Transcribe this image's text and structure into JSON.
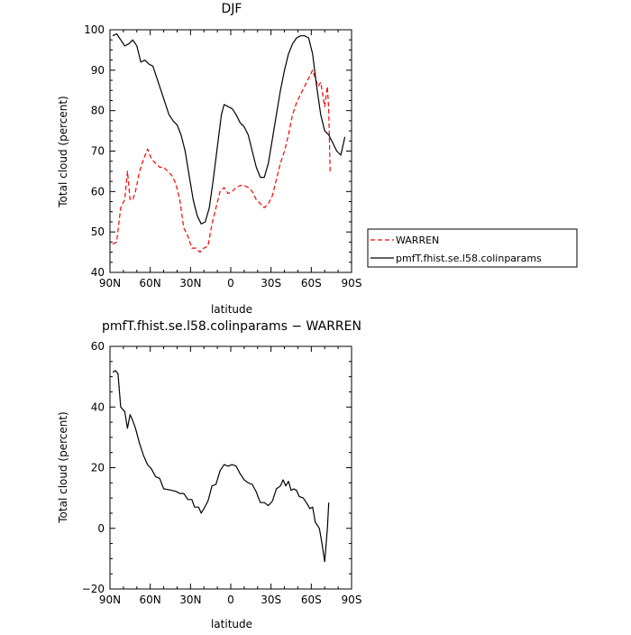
{
  "chart_data": [
    {
      "type": "line",
      "title": "DJF",
      "xlabel": "latitude",
      "ylabel": "Total cloud (percent)",
      "xlim": [
        -90,
        90
      ],
      "ylim": [
        40,
        100
      ],
      "x_ticks": [
        -90,
        -60,
        -30,
        0,
        30,
        60,
        90
      ],
      "x_tick_labels": [
        "90N",
        "60N",
        "30N",
        "0",
        "30S",
        "60S",
        "90S"
      ],
      "y_ticks": [
        40,
        50,
        60,
        70,
        80,
        90,
        100
      ],
      "y_tick_labels": [
        "40",
        "50",
        "60",
        "70",
        "80",
        "90",
        "100"
      ],
      "legend_position": "right",
      "series": [
        {
          "name": "WARREN",
          "color": "#ff0000",
          "dash": "dashed",
          "points": [
            [
              -88,
              47
            ],
            [
              -85,
              47.5
            ],
            [
              -82,
              56
            ],
            [
              -79,
              58
            ],
            [
              -77,
              65
            ],
            [
              -75,
              58
            ],
            [
              -73,
              58
            ],
            [
              -71,
              60
            ],
            [
              -68,
              65
            ],
            [
              -65,
              68
            ],
            [
              -62,
              70.5
            ],
            [
              -59,
              68
            ],
            [
              -56,
              67
            ],
            [
              -53,
              66
            ],
            [
              -50,
              66
            ],
            [
              -47,
              65
            ],
            [
              -44,
              64
            ],
            [
              -41,
              62
            ],
            [
              -38,
              58
            ],
            [
              -35,
              51
            ],
            [
              -32,
              49
            ],
            [
              -29,
              46
            ],
            [
              -26,
              46
            ],
            [
              -23,
              45
            ],
            [
              -20,
              46
            ],
            [
              -17,
              46.5
            ],
            [
              -14,
              52
            ],
            [
              -11,
              56
            ],
            [
              -8,
              60
            ],
            [
              -5,
              61
            ],
            [
              -2,
              59.5
            ],
            [
              1,
              60
            ],
            [
              4,
              61
            ],
            [
              7,
              61.5
            ],
            [
              10,
              61.5
            ],
            [
              13,
              61
            ],
            [
              16,
              60
            ],
            [
              19,
              58
            ],
            [
              22,
              57
            ],
            [
              25,
              56
            ],
            [
              28,
              57
            ],
            [
              31,
              59
            ],
            [
              34,
              63
            ],
            [
              37,
              67
            ],
            [
              40,
              70
            ],
            [
              43,
              74
            ],
            [
              46,
              79
            ],
            [
              49,
              82
            ],
            [
              52,
              84
            ],
            [
              55,
              86
            ],
            [
              58,
              88
            ],
            [
              61,
              90
            ],
            [
              63,
              88
            ],
            [
              65,
              86
            ],
            [
              67,
              87
            ],
            [
              70,
              81
            ],
            [
              72,
              86
            ],
            [
              73,
              80
            ],
            [
              74,
              65
            ]
          ]
        },
        {
          "name": "pmfT.fhist.se.l58.colinparams",
          "color": "#000000",
          "dash": "solid",
          "points": [
            [
              -88,
              98.5
            ],
            [
              -85,
              99
            ],
            [
              -82,
              97.5
            ],
            [
              -79,
              96
            ],
            [
              -76,
              96.5
            ],
            [
              -73,
              97.5
            ],
            [
              -70,
              96
            ],
            [
              -67,
              92
            ],
            [
              -64,
              92.5
            ],
            [
              -61,
              91.5
            ],
            [
              -58,
              91
            ],
            [
              -55,
              88
            ],
            [
              -52,
              85
            ],
            [
              -49,
              82
            ],
            [
              -46,
              79
            ],
            [
              -43,
              77.5
            ],
            [
              -40,
              76.5
            ],
            [
              -37,
              74
            ],
            [
              -34,
              70
            ],
            [
              -31,
              64
            ],
            [
              -28,
              58
            ],
            [
              -25,
              54
            ],
            [
              -22,
              52
            ],
            [
              -19,
              52.5
            ],
            [
              -16,
              56
            ],
            [
              -13,
              63
            ],
            [
              -10,
              71
            ],
            [
              -7,
              79
            ],
            [
              -5,
              81.5
            ],
            [
              -2,
              81
            ],
            [
              1,
              80.5
            ],
            [
              4,
              79
            ],
            [
              7,
              77
            ],
            [
              10,
              76
            ],
            [
              13,
              74
            ],
            [
              16,
              70
            ],
            [
              19,
              66
            ],
            [
              22,
              63.5
            ],
            [
              25,
              63.5
            ],
            [
              28,
              67
            ],
            [
              31,
              73
            ],
            [
              34,
              79
            ],
            [
              37,
              85
            ],
            [
              40,
              90
            ],
            [
              43,
              94
            ],
            [
              46,
              96.5
            ],
            [
              49,
              98
            ],
            [
              52,
              98.5
            ],
            [
              55,
              98.5
            ],
            [
              58,
              98
            ],
            [
              61,
              94
            ],
            [
              64,
              86
            ],
            [
              67,
              79
            ],
            [
              70,
              75
            ],
            [
              73,
              74
            ],
            [
              76,
              72
            ],
            [
              79,
              70
            ],
            [
              82,
              69
            ],
            [
              85,
              73.5
            ]
          ]
        }
      ]
    },
    {
      "type": "line",
      "title": "pmfT.fhist.se.l58.colinparams − WARREN",
      "xlabel": "latitude",
      "ylabel": "Total cloud (percent)",
      "xlim": [
        -90,
        90
      ],
      "ylim": [
        -20,
        60
      ],
      "x_ticks": [
        -90,
        -60,
        -30,
        0,
        30,
        60,
        90
      ],
      "x_tick_labels": [
        "90N",
        "60N",
        "30N",
        "0",
        "30S",
        "60S",
        "90S"
      ],
      "y_ticks": [
        -20,
        0,
        20,
        40,
        60
      ],
      "y_tick_labels": [
        "−20",
        "0",
        "20",
        "40",
        "60"
      ],
      "series": [
        {
          "color": "#000000",
          "dash": "solid",
          "points": [
            [
              -88,
              51.5
            ],
            [
              -86,
              52
            ],
            [
              -84,
              51
            ],
            [
              -82,
              40
            ],
            [
              -79,
              38.5
            ],
            [
              -77,
              33
            ],
            [
              -75,
              37.5
            ],
            [
              -73,
              35.5
            ],
            [
              -71,
              33
            ],
            [
              -68,
              28
            ],
            [
              -65,
              24
            ],
            [
              -62,
              21
            ],
            [
              -59,
              19.5
            ],
            [
              -56,
              17
            ],
            [
              -53,
              16.5
            ],
            [
              -50,
              13
            ],
            [
              -47,
              12.8
            ],
            [
              -44,
              12.5
            ],
            [
              -41,
              12.2
            ],
            [
              -38,
              11.5
            ],
            [
              -35,
              11.5
            ],
            [
              -32,
              9.5
            ],
            [
              -29,
              9.5
            ],
            [
              -27,
              7
            ],
            [
              -24,
              7
            ],
            [
              -22,
              5
            ],
            [
              -20,
              6.5
            ],
            [
              -17,
              9
            ],
            [
              -14,
              14
            ],
            [
              -11,
              14.5
            ],
            [
              -8,
              19
            ],
            [
              -5,
              21
            ],
            [
              -2,
              20.5
            ],
            [
              1,
              21
            ],
            [
              4,
              20.5
            ],
            [
              7,
              18
            ],
            [
              10,
              16
            ],
            [
              13,
              15
            ],
            [
              16,
              14.5
            ],
            [
              19,
              12
            ],
            [
              22,
              8.5
            ],
            [
              25,
              8.5
            ],
            [
              28,
              7.5
            ],
            [
              31,
              9
            ],
            [
              34,
              13
            ],
            [
              37,
              14
            ],
            [
              39,
              16
            ],
            [
              41,
              14
            ],
            [
              43,
              15.5
            ],
            [
              45,
              12.5
            ],
            [
              47,
              13
            ],
            [
              49,
              12.5
            ],
            [
              51,
              10.5
            ],
            [
              54,
              10
            ],
            [
              57,
              8
            ],
            [
              59,
              6.5
            ],
            [
              61,
              7
            ],
            [
              63,
              2
            ],
            [
              66,
              0
            ],
            [
              68,
              -5
            ],
            [
              70,
              -11
            ],
            [
              72,
              0
            ],
            [
              73,
              8.5
            ]
          ]
        }
      ]
    }
  ]
}
